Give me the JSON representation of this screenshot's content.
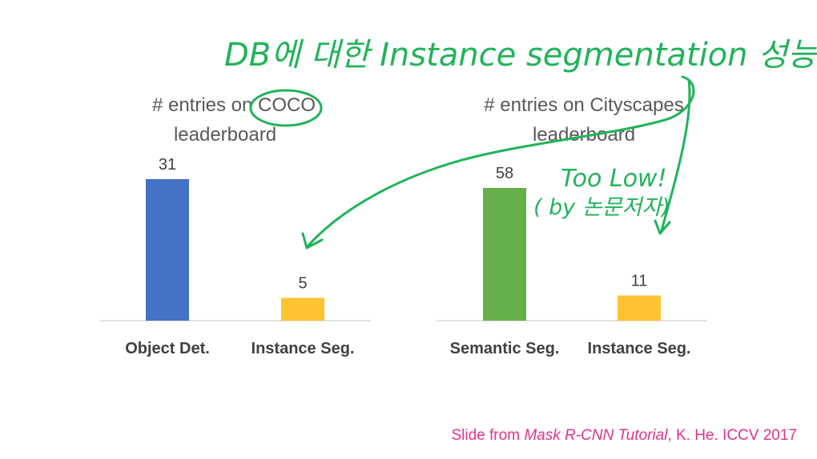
{
  "chart_data": [
    {
      "type": "bar",
      "title_lines": [
        "# entries on COCO",
        "leaderboard"
      ],
      "categories": [
        "Object Det.",
        "Instance Seg."
      ],
      "values": [
        31,
        5
      ],
      "colors": [
        "#4472c4",
        "#ffc332"
      ],
      "ylim": [
        0,
        31
      ],
      "grid": false
    },
    {
      "type": "bar",
      "title_lines": [
        "# entries on Cityscapes",
        "leaderboard"
      ],
      "categories": [
        "Semantic Seg.",
        "Instance Seg."
      ],
      "values": [
        58,
        11
      ],
      "colors": [
        "#66b04c",
        "#ffc332"
      ],
      "ylim": [
        0,
        58
      ],
      "grid": false
    }
  ],
  "annotations": {
    "heading": "DB에 대한 Instance segmentation 성능",
    "note_line1": "Too Low!",
    "note_line2": "( by 논문저자)"
  },
  "credit": {
    "prefix": "Slide from ",
    "italic": "Mask R-CNN Tutorial",
    "suffix": ", K. He. ICCV 2017"
  }
}
